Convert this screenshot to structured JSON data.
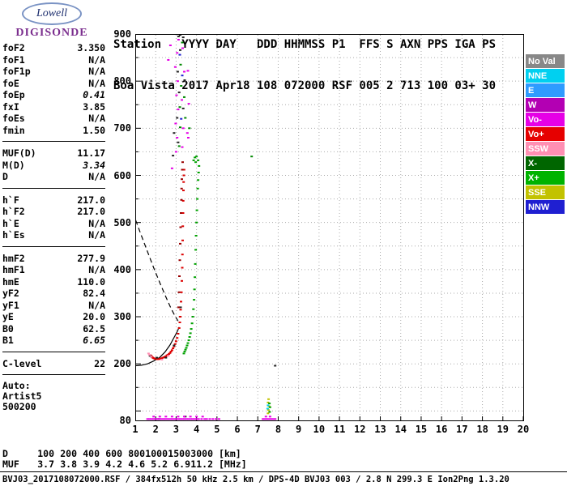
{
  "logo": {
    "name": "Lowell",
    "subtitle": "DIGISONDE"
  },
  "header": {
    "line1": "Station   YYYY DAY   DDD HHMMSS P1  FFS S AXN PPS IGA PS",
    "line2": "Boa Vista 2017 Apr18 108 072000 RSF 005 2 713 100 03+ 30"
  },
  "parameters": {
    "groups": [
      {
        "rows": [
          {
            "label": "foF2",
            "value": "3.350"
          },
          {
            "label": "foF1",
            "value": "N/A"
          },
          {
            "label": "foF1p",
            "value": "N/A"
          },
          {
            "label": "foE",
            "value": "N/A"
          },
          {
            "label": "foEp",
            "value": "0.41",
            "italic": true
          },
          {
            "label": "fxI",
            "value": "3.85"
          },
          {
            "label": "foEs",
            "value": "N/A"
          },
          {
            "label": "fmin",
            "value": "1.50"
          }
        ]
      },
      {
        "rows": [
          {
            "label": "MUF(D)",
            "value": "11.17"
          },
          {
            "label": "M(D)",
            "value": "3.34",
            "italic": true
          },
          {
            "label": "D",
            "value": "N/A"
          }
        ]
      },
      {
        "rows": [
          {
            "label": "h`F",
            "value": "217.0"
          },
          {
            "label": "h`F2",
            "value": "217.0"
          },
          {
            "label": "h`E",
            "value": "N/A"
          },
          {
            "label": "h`Es",
            "value": "N/A"
          }
        ]
      },
      {
        "rows": [
          {
            "label": "hmF2",
            "value": "277.9"
          },
          {
            "label": "hmF1",
            "value": "N/A"
          },
          {
            "label": "hmE",
            "value": "110.0"
          },
          {
            "label": "yF2",
            "value": "82.4"
          },
          {
            "label": "yF1",
            "value": "N/A"
          },
          {
            "label": "yE",
            "value": "20.0"
          },
          {
            "label": "B0",
            "value": "62.5"
          },
          {
            "label": "B1",
            "value": "6.65",
            "italic": true
          }
        ]
      },
      {
        "rows": [
          {
            "label": "C-level",
            "value": "22"
          }
        ]
      }
    ],
    "footer": [
      "Auto:",
      "Artist5",
      "500200"
    ]
  },
  "legend": {
    "entries": [
      {
        "label": "No Val",
        "color": "#888888"
      },
      {
        "label": "NNE",
        "color": "#00d0f0"
      },
      {
        "label": "E",
        "color": "#2e9bff"
      },
      {
        "label": "W",
        "color": "#b300b3"
      },
      {
        "label": "Vo-",
        "color": "#e600e6"
      },
      {
        "label": "Vo+",
        "color": "#e60000"
      },
      {
        "label": "SSW",
        "color": "#ff8fb3"
      },
      {
        "label": "X-",
        "color": "#006600"
      },
      {
        "label": "X+",
        "color": "#00b300"
      },
      {
        "label": "SSE",
        "color": "#c2c200"
      },
      {
        "label": "NNW",
        "color": "#1f1fd1"
      }
    ]
  },
  "chart_data": {
    "type": "scatter",
    "title": "Digisonde ionogram Boa Vista 2017 Apr18 072000",
    "x_unit": "MHz",
    "y_unit": "km",
    "xlim": [
      1,
      20
    ],
    "ylim": [
      80,
      900
    ],
    "grid": "dotted",
    "xticks": [
      1,
      2,
      3,
      4,
      5,
      6,
      7,
      8,
      9,
      10,
      11,
      12,
      13,
      14,
      15,
      16,
      17,
      18,
      19,
      20
    ],
    "ytick_labels": [
      900,
      800,
      700,
      600,
      500,
      400,
      300,
      200,
      80
    ],
    "series": [
      {
        "name": "o-mode-f-trace",
        "legend": "Vo+",
        "color": "#dd0000",
        "points": [
          [
            1.75,
            218
          ],
          [
            1.8,
            216
          ],
          [
            1.83,
            214
          ],
          [
            1.86,
            213
          ],
          [
            1.9,
            212
          ],
          [
            1.95,
            211
          ],
          [
            2.0,
            211
          ],
          [
            2.05,
            210
          ],
          [
            2.1,
            210
          ],
          [
            2.15,
            210
          ],
          [
            2.2,
            211
          ],
          [
            2.25,
            211
          ],
          [
            2.3,
            212
          ],
          [
            2.35,
            213
          ],
          [
            2.4,
            214
          ],
          [
            2.45,
            215
          ],
          [
            2.5,
            216
          ],
          [
            2.55,
            218
          ],
          [
            2.6,
            219
          ],
          [
            2.65,
            221
          ],
          [
            2.7,
            223
          ],
          [
            2.75,
            226
          ],
          [
            2.8,
            229
          ],
          [
            2.85,
            233
          ],
          [
            2.9,
            237
          ],
          [
            2.95,
            242
          ],
          [
            3.0,
            248
          ],
          [
            3.05,
            255
          ],
          [
            3.1,
            264
          ],
          [
            3.15,
            276
          ],
          [
            3.18,
            288
          ],
          [
            3.2,
            300
          ],
          [
            3.22,
            315
          ],
          [
            3.24,
            332
          ],
          [
            3.26,
            352
          ],
          [
            3.28,
            376
          ],
          [
            3.3,
            404
          ],
          [
            3.31,
            432
          ],
          [
            3.32,
            462
          ],
          [
            3.33,
            492
          ],
          [
            3.34,
            520
          ],
          [
            3.35,
            546
          ],
          [
            3.36,
            568
          ],
          [
            3.37,
            586
          ],
          [
            3.38,
            600
          ],
          [
            3.39,
            612
          ]
        ]
      },
      {
        "name": "o-trace-dark-mix",
        "legend": "No Val",
        "color": "#222222",
        "points": [
          [
            1.72,
            217
          ],
          [
            2.05,
            213
          ],
          [
            2.5,
            213
          ],
          [
            2.9,
            239
          ],
          [
            3.22,
            320
          ],
          [
            2.15,
            83
          ],
          [
            3.45,
            88
          ]
        ]
      },
      {
        "name": "trace-start-pink",
        "legend": "SSW",
        "color": "#ff8fb3",
        "points": [
          [
            1.65,
            222
          ],
          [
            1.7,
            219
          ],
          [
            1.78,
            215
          ],
          [
            2.3,
            209
          ],
          [
            2.62,
            217
          ]
        ]
      },
      {
        "name": "x-mode-f-trace",
        "legend": "X+",
        "color": "#00a000",
        "points": [
          [
            3.38,
            222
          ],
          [
            3.42,
            226
          ],
          [
            3.46,
            230
          ],
          [
            3.5,
            234
          ],
          [
            3.54,
            239
          ],
          [
            3.58,
            244
          ],
          [
            3.62,
            250
          ],
          [
            3.66,
            257
          ],
          [
            3.7,
            265
          ],
          [
            3.74,
            274
          ],
          [
            3.78,
            286
          ],
          [
            3.82,
            300
          ],
          [
            3.85,
            316
          ],
          [
            3.88,
            336
          ],
          [
            3.9,
            358
          ],
          [
            3.92,
            384
          ],
          [
            3.94,
            412
          ],
          [
            3.96,
            442
          ],
          [
            3.98,
            472
          ],
          [
            4.0,
            500
          ],
          [
            4.02,
            526
          ],
          [
            4.04,
            550
          ],
          [
            4.06,
            572
          ],
          [
            4.08,
            590
          ],
          [
            4.1,
            606
          ],
          [
            4.12,
            620
          ],
          [
            4.08,
            632
          ],
          [
            4.0,
            640
          ],
          [
            3.92,
            638
          ],
          [
            3.86,
            632
          ],
          [
            3.96,
            628
          ]
        ]
      },
      {
        "name": "spread-f-column-dark-red",
        "legend": "Vo+",
        "color": "#990000",
        "points": [
          [
            3.12,
            320
          ],
          [
            3.14,
            352
          ],
          [
            3.16,
            386
          ],
          [
            3.18,
            420
          ],
          [
            3.2,
            455
          ],
          [
            3.22,
            490
          ],
          [
            3.24,
            520
          ],
          [
            3.26,
            548
          ],
          [
            3.27,
            572
          ],
          [
            3.28,
            592
          ],
          [
            3.3,
            612
          ],
          [
            3.32,
            628
          ]
        ]
      },
      {
        "name": "spread-f-magenta",
        "legend": "Vo-",
        "color": "#e600e6",
        "points": [
          [
            3.0,
            650
          ],
          [
            3.05,
            680
          ],
          [
            2.98,
            710
          ],
          [
            3.1,
            740
          ],
          [
            3.02,
            770
          ],
          [
            3.08,
            800
          ],
          [
            2.96,
            830
          ],
          [
            3.05,
            860
          ],
          [
            3.12,
            888
          ],
          [
            3.3,
            660
          ],
          [
            3.35,
            700
          ],
          [
            3.28,
            760
          ],
          [
            3.4,
            820
          ],
          [
            3.32,
            870
          ],
          [
            2.62,
            845
          ],
          [
            2.72,
            876
          ],
          [
            3.55,
            690
          ],
          [
            3.6,
            680
          ],
          [
            3.62,
            752
          ],
          [
            3.58,
            822
          ],
          [
            2.8,
            615
          ]
        ]
      },
      {
        "name": "spread-f-green",
        "legend": "X+",
        "color": "#008800",
        "points": [
          [
            3.15,
            662
          ],
          [
            3.2,
            702
          ],
          [
            3.18,
            745
          ],
          [
            3.25,
            790
          ],
          [
            3.22,
            835
          ],
          [
            3.3,
            882
          ],
          [
            3.45,
            722
          ],
          [
            3.4,
            766
          ],
          [
            3.65,
            700
          ],
          [
            6.7,
            640
          ]
        ]
      },
      {
        "name": "spread-f-dark",
        "legend": "No Val",
        "color": "#222222",
        "points": [
          [
            3.1,
            670
          ],
          [
            3.05,
            722
          ],
          [
            3.15,
            776
          ],
          [
            3.08,
            820
          ],
          [
            3.2,
            866
          ],
          [
            3.12,
            895
          ],
          [
            3.35,
            742
          ],
          [
            3.42,
            802
          ],
          [
            2.85,
            642
          ],
          [
            2.9,
            690
          ],
          [
            3.2,
            898
          ],
          [
            3.35,
            893
          ],
          [
            7.85,
            196
          ]
        ]
      },
      {
        "name": "spread-f-blue",
        "legend": "NNW",
        "color": "#1f1fd1",
        "points": [
          [
            3.25,
            720
          ],
          [
            3.3,
            812
          ],
          [
            3.18,
            856
          ]
        ]
      },
      {
        "name": "bottom-interference-magenta",
        "legend": "Vo-",
        "color": "#e600e6",
        "points": [
          [
            1.6,
            83
          ],
          [
            1.7,
            83
          ],
          [
            1.8,
            83
          ],
          [
            1.9,
            83
          ],
          [
            2.0,
            83
          ],
          [
            2.1,
            83
          ],
          [
            2.2,
            83
          ],
          [
            2.3,
            83
          ],
          [
            2.4,
            83
          ],
          [
            2.5,
            83
          ],
          [
            2.6,
            83
          ],
          [
            2.7,
            83
          ],
          [
            2.8,
            83
          ],
          [
            2.9,
            83
          ],
          [
            3.0,
            83
          ],
          [
            3.1,
            83
          ],
          [
            3.2,
            83
          ],
          [
            3.3,
            83
          ],
          [
            3.4,
            83
          ],
          [
            3.5,
            83
          ],
          [
            3.6,
            83
          ],
          [
            3.7,
            83
          ],
          [
            3.8,
            83
          ],
          [
            3.9,
            83
          ],
          [
            4.0,
            83
          ],
          [
            4.1,
            83
          ],
          [
            4.25,
            83
          ],
          [
            4.4,
            83
          ],
          [
            4.5,
            83
          ],
          [
            4.65,
            83
          ],
          [
            4.8,
            83
          ],
          [
            4.95,
            83
          ],
          [
            5.1,
            83
          ],
          [
            1.9,
            88
          ],
          [
            2.2,
            88
          ],
          [
            2.5,
            88
          ],
          [
            2.8,
            88
          ],
          [
            3.1,
            88
          ],
          [
            3.4,
            88
          ],
          [
            3.7,
            88
          ],
          [
            4.0,
            88
          ],
          [
            4.3,
            88
          ],
          [
            7.25,
            83
          ],
          [
            7.35,
            83
          ],
          [
            7.45,
            83
          ],
          [
            7.55,
            83
          ],
          [
            7.65,
            83
          ],
          [
            7.75,
            83
          ],
          [
            7.85,
            83
          ],
          [
            7.4,
            88
          ],
          [
            7.6,
            88
          ]
        ]
      },
      {
        "name": "cluster-7mhz-yellow",
        "legend": "SSE",
        "color": "#c2c200",
        "points": [
          [
            7.5,
            95
          ],
          [
            7.52,
            102
          ],
          [
            7.55,
            110
          ],
          [
            7.5,
            118
          ],
          [
            7.53,
            125
          ]
        ]
      },
      {
        "name": "cluster-7mhz-green",
        "legend": "X+",
        "color": "#00a000",
        "points": [
          [
            7.58,
            98
          ],
          [
            7.6,
            108
          ],
          [
            7.57,
            116
          ]
        ]
      },
      {
        "name": "cluster-7mhz-cyan",
        "legend": "NNE",
        "color": "#00d0f0",
        "points": [
          [
            7.48,
            105
          ],
          [
            7.5,
            112
          ]
        ]
      }
    ],
    "lines": [
      {
        "name": "extrapolated-profile",
        "style": "dashed",
        "color": "#000000",
        "points": [
          [
            1.02,
            505
          ],
          [
            1.3,
            472
          ],
          [
            1.6,
            438
          ],
          [
            1.9,
            404
          ],
          [
            2.2,
            372
          ],
          [
            2.5,
            342
          ],
          [
            2.75,
            318
          ],
          [
            2.95,
            301
          ],
          [
            3.1,
            291
          ]
        ]
      },
      {
        "name": "true-height-profile",
        "style": "solid",
        "color": "#000000",
        "points": [
          [
            1.02,
            196
          ],
          [
            1.3,
            197
          ],
          [
            1.6,
            200
          ],
          [
            1.9,
            206
          ],
          [
            2.2,
            214
          ],
          [
            2.45,
            225
          ],
          [
            2.7,
            240
          ],
          [
            2.9,
            256
          ],
          [
            3.05,
            268
          ],
          [
            3.15,
            278
          ]
        ]
      }
    ]
  },
  "dmuf_table": {
    "rows": [
      {
        "label": "D",
        "values": [
          "100",
          "200",
          "400",
          "600",
          "800",
          "1000",
          "1500",
          "3000"
        ],
        "unit": "[km]"
      },
      {
        "label": "MUF",
        "values": [
          "3.7",
          "3.8",
          "3.9",
          "4.2",
          "4.6",
          "5.2",
          "6.9",
          "11.2"
        ],
        "unit": "[MHz]"
      }
    ]
  },
  "status_line": "BVJ03_2017108072000.RSF / 384fx512h 50 kHz 2.5 km / DPS-4D BVJ03 003 / 2.8 N 299.3 E Ion2Png 1.3.20"
}
